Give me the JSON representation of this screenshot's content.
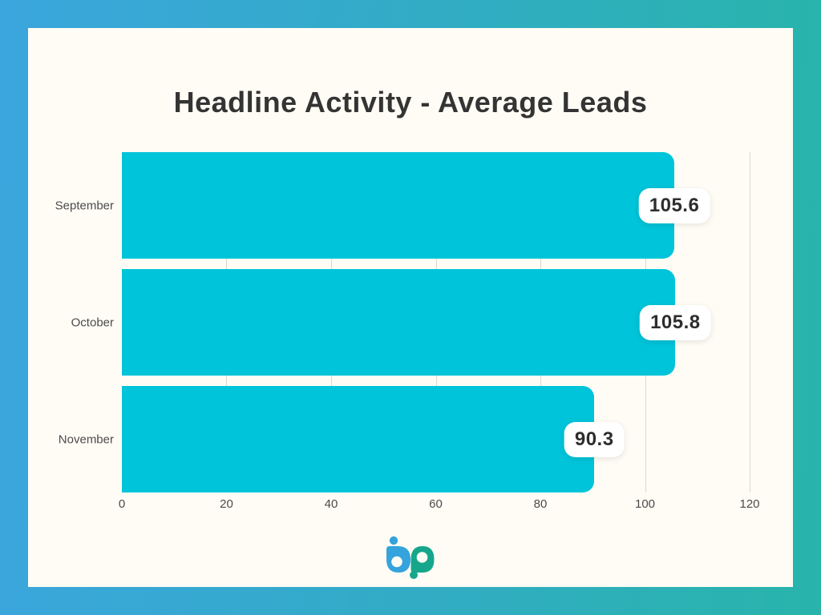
{
  "title": "Headline Activity - Average Leads",
  "chart_data": {
    "type": "bar",
    "orientation": "horizontal",
    "title": "Headline Activity - Average Leads",
    "categories": [
      "September",
      "October",
      "November"
    ],
    "values": [
      105.6,
      105.8,
      90.3
    ],
    "value_labels": [
      "105.6",
      "105.8",
      "90.3"
    ],
    "xlabel": "",
    "ylabel": "",
    "xlim": [
      0,
      120
    ],
    "xticks": [
      0,
      20,
      40,
      60,
      80,
      100,
      120
    ],
    "grid": true,
    "legend": false,
    "bar_color": "#00C4D9",
    "gridline_color": "#DCD8CF"
  },
  "logo": {
    "text": "bp",
    "blue": "#35A3DC",
    "teal": "#16A68C"
  },
  "colors": {
    "frame_gradient_left": "#3BA6DD",
    "frame_gradient_right": "#28B4AB",
    "card_background": "#FFFCF5",
    "title_text": "#343434",
    "axis_text": "#4B4B4B",
    "badge_background": "#FFFFFF",
    "badge_text": "#2D2D2D"
  }
}
